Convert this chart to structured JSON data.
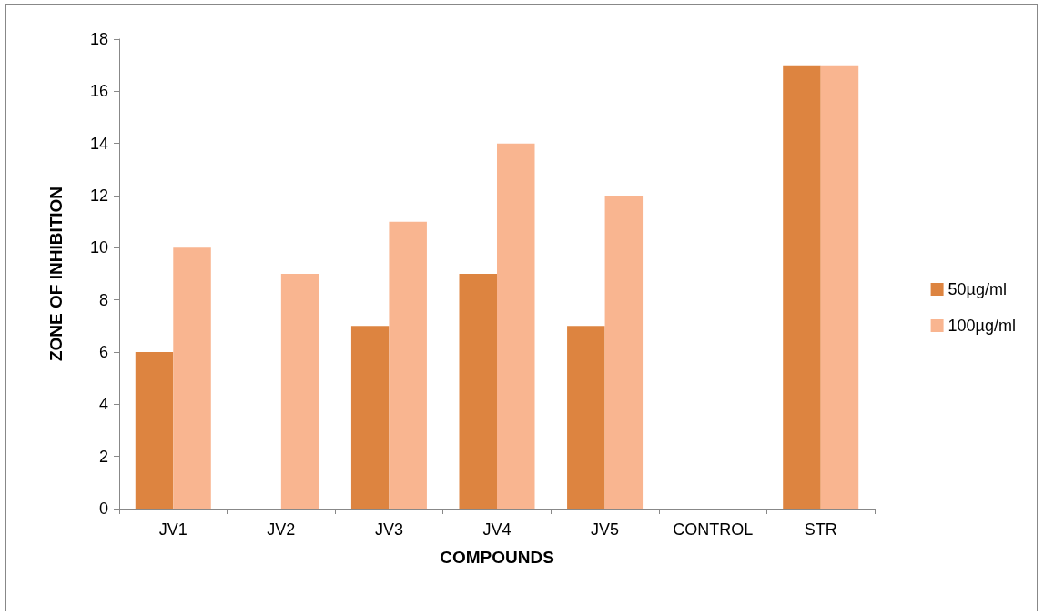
{
  "chart_data": {
    "type": "bar",
    "xlabel": "COMPOUNDS",
    "ylabel": "ZONE OF INHIBITION",
    "categories": [
      "JV1",
      "JV2",
      "JV3",
      "JV4",
      "JV5",
      "CONTROL",
      "STR"
    ],
    "series": [
      {
        "name": "50µg/ml",
        "color": "#dd8440",
        "values": [
          6,
          0,
          7,
          9,
          7,
          0,
          17
        ]
      },
      {
        "name": "100µg/ml",
        "color": "#f9b590",
        "values": [
          10,
          9,
          11,
          14,
          12,
          0,
          17
        ]
      }
    ],
    "ylim": [
      0,
      18
    ],
    "yticks": [
      0,
      2,
      4,
      6,
      8,
      10,
      12,
      14,
      16,
      18
    ],
    "grid": false,
    "legend": "right"
  }
}
